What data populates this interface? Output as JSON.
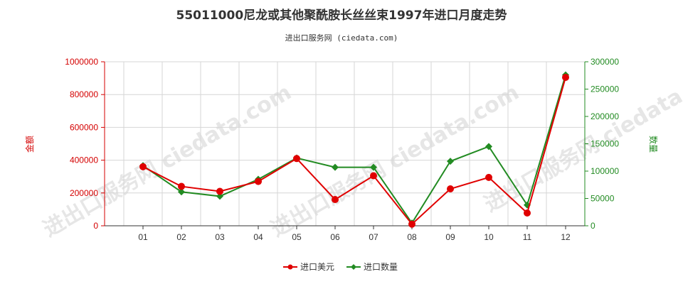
{
  "chart_data": {
    "type": "line",
    "title": "55011000尼龙或其他聚酰胺长丝丝束1997年进口月度走势",
    "subtitle": "进出口服务网 (ciedata.com)",
    "watermark": "进出口服务网 ciedata.com",
    "categories": [
      "01",
      "02",
      "03",
      "04",
      "05",
      "06",
      "07",
      "08",
      "09",
      "10",
      "11",
      "12"
    ],
    "y_left": {
      "label": "金额",
      "range": [
        0,
        1000000
      ],
      "ticks": [
        "0",
        "200000",
        "400000",
        "600000",
        "800000",
        "1000000"
      ],
      "color": "#d40000"
    },
    "y_right": {
      "label": "数量",
      "range": [
        0,
        300000
      ],
      "ticks": [
        "0",
        "50000",
        "100000",
        "150000",
        "200000",
        "250000",
        "300000"
      ],
      "color": "#228b22"
    },
    "series": [
      {
        "name": "进口美元",
        "axis": "left",
        "color": "#e00000",
        "marker": "circle",
        "values": [
          360000,
          240000,
          210000,
          270000,
          410000,
          160000,
          305000,
          10000,
          225000,
          295000,
          78000,
          905000
        ]
      },
      {
        "name": "进口数量",
        "axis": "right",
        "color": "#228b22",
        "marker": "diamond",
        "values": [
          110000,
          62000,
          54000,
          85000,
          124000,
          107000,
          107000,
          5000,
          118000,
          145000,
          38000,
          276000
        ]
      }
    ],
    "grid": true,
    "legend_position": "bottom-center"
  }
}
